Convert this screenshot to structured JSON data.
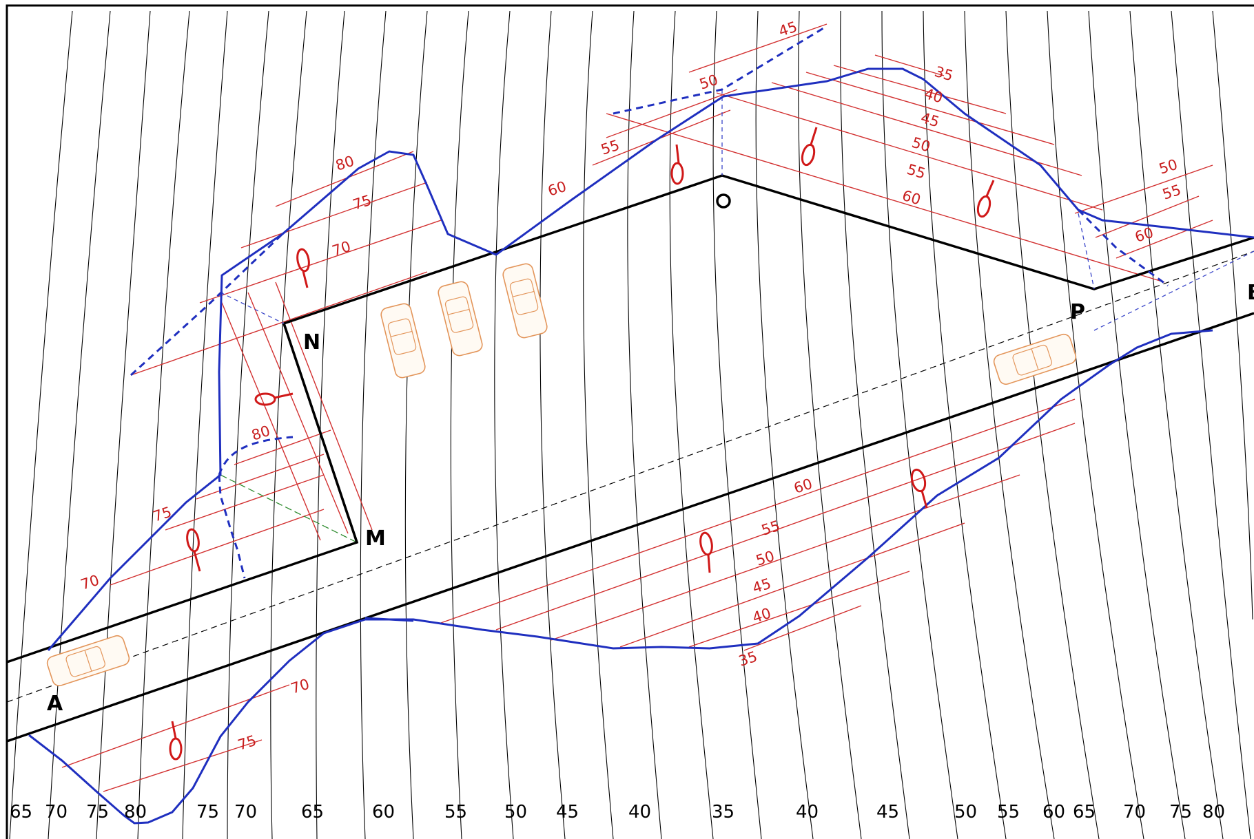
{
  "points": [
    {
      "id": "A",
      "label": "A"
    },
    {
      "id": "M",
      "label": "M"
    },
    {
      "id": "N",
      "label": "N"
    },
    {
      "id": "O",
      "label": "O"
    },
    {
      "id": "P",
      "label": "P"
    },
    {
      "id": "edge",
      "label": "B"
    }
  ],
  "bottom_contour_labels": [
    "65",
    "70",
    "75",
    "80",
    "75",
    "70",
    "65",
    "60",
    "55",
    "50",
    "45",
    "40",
    "35",
    "40",
    "45",
    "50",
    "55",
    "60",
    "65",
    "70",
    "75",
    "80"
  ],
  "slope_labels": [
    "45",
    "50",
    "55",
    "60",
    "35",
    "40",
    "45",
    "50",
    "55",
    "60",
    "50",
    "55",
    "60",
    "80",
    "75",
    "70",
    "80",
    "75",
    "70",
    "60",
    "55",
    "50",
    "45",
    "40",
    "35",
    "70",
    "75"
  ],
  "colors": {
    "boundary": "#1f2fbf",
    "slope_hatch": "#d23030",
    "contours": "#000000",
    "cars": "#e3955a"
  }
}
